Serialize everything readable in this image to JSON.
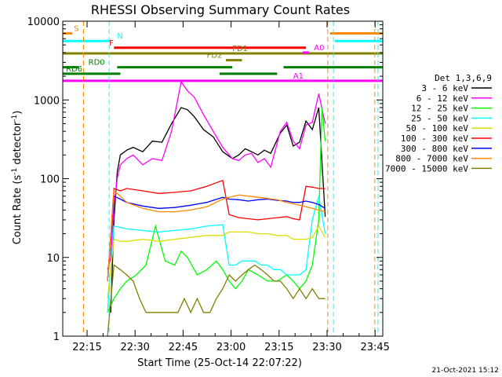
{
  "chart_data": {
    "type": "line",
    "title": "RHESSI Observing Summary Count Rates",
    "xlabel": "Start Time (25-Oct-14 22:07:22)",
    "ylabel": "Count Rate (s⁻¹ detector⁻¹)",
    "ylabel_main": "Count Rate (s",
    "ylabel_sup1": "-1",
    "ylabel_mid": " detector",
    "ylabel_sup2": "-1",
    "ylabel_end": ")",
    "x_unit": "minutes after 22:07:22",
    "xlim": [
      0,
      100
    ],
    "ylim": [
      1,
      10000
    ],
    "yscale": "log",
    "x_ticks": [
      {
        "label": "22:15",
        "value": 7.6
      },
      {
        "label": "22:30",
        "value": 22.6
      },
      {
        "label": "22:45",
        "value": 37.6
      },
      {
        "label": "23:00",
        "value": 52.6
      },
      {
        "label": "23:15",
        "value": 67.6
      },
      {
        "label": "23:30",
        "value": 82.6
      },
      {
        "label": "23:45",
        "value": 97.6
      }
    ],
    "y_ticks": [
      {
        "label": "1",
        "value": 1
      },
      {
        "label": "10",
        "value": 10
      },
      {
        "label": "100",
        "value": 100
      },
      {
        "label": "1000",
        "value": 1000
      },
      {
        "label": "10000",
        "value": 10000
      }
    ],
    "legend_title": "Det 1,3,6,9",
    "legend_position": "right",
    "series": [
      {
        "name": "3 - 6 keV",
        "color": "#000000",
        "x": [
          15,
          16,
          17,
          18,
          20,
          22,
          25,
          28,
          31,
          34,
          37,
          39,
          41,
          44,
          47,
          50,
          53,
          55,
          57,
          59,
          61,
          63,
          65,
          68,
          70,
          72,
          74,
          76,
          78,
          80,
          82
        ],
        "y": [
          2,
          30,
          120,
          200,
          230,
          250,
          220,
          300,
          290,
          500,
          800,
          750,
          620,
          420,
          340,
          220,
          180,
          200,
          240,
          220,
          200,
          230,
          210,
          380,
          480,
          260,
          290,
          540,
          420,
          800,
          33
        ]
      },
      {
        "name": "6 - 12 keV",
        "color": "#ff00ff",
        "x": [
          14,
          15,
          16,
          17,
          18,
          20,
          22,
          25,
          28,
          31,
          34,
          37,
          39,
          41,
          44,
          47,
          50,
          53,
          55,
          57,
          59,
          61,
          63,
          65,
          68,
          70,
          72,
          74,
          76,
          78,
          80,
          82
        ],
        "y": [
          7,
          10,
          45,
          100,
          150,
          180,
          200,
          150,
          180,
          170,
          400,
          1700,
          1300,
          1100,
          650,
          400,
          250,
          180,
          170,
          200,
          210,
          160,
          180,
          140,
          400,
          520,
          300,
          240,
          480,
          520,
          1200,
          500
        ]
      },
      {
        "name": "12 - 25 keV",
        "color": "#00ff00",
        "x": [
          14,
          16,
          18,
          20,
          23,
          26,
          29,
          32,
          35,
          37,
          39,
          42,
          45,
          48,
          50,
          52,
          54,
          56,
          58,
          61,
          64,
          67,
          70,
          72,
          74,
          76,
          78,
          80,
          81,
          82
        ],
        "y": [
          2,
          3,
          4,
          5,
          6,
          8,
          25,
          9,
          8,
          12,
          10,
          6,
          7,
          9,
          7,
          5,
          4,
          5,
          7,
          6,
          5,
          5,
          6,
          5,
          4,
          5,
          8,
          30,
          800,
          300
        ]
      },
      {
        "name": "25 - 50 keV",
        "color": "#00ffff",
        "x": [
          14,
          16,
          18,
          20,
          25,
          30,
          35,
          40,
          45,
          50,
          52,
          54,
          56,
          58,
          60,
          62,
          64,
          66,
          68,
          70,
          72,
          74,
          76,
          78,
          80,
          82
        ],
        "y": [
          2,
          25,
          24,
          23,
          22,
          21,
          22,
          23,
          25,
          26,
          8,
          8,
          9,
          9,
          9,
          8,
          8,
          7,
          7,
          6,
          6,
          6,
          7,
          30,
          60,
          20
        ]
      },
      {
        "name": "50 - 100 keV",
        "color": "#dddd00",
        "x": [
          14,
          16,
          18,
          20,
          25,
          30,
          35,
          40,
          45,
          50,
          52,
          55,
          58,
          61,
          64,
          67,
          70,
          72,
          74,
          76,
          78,
          80,
          82
        ],
        "y": [
          3,
          17,
          16,
          16,
          17,
          16,
          17,
          18,
          19,
          19,
          21,
          21,
          21,
          20,
          20,
          19,
          19,
          17,
          17,
          17,
          18,
          25,
          18
        ]
      },
      {
        "name": "100 - 300 keV",
        "color": "#ff0000",
        "x": [
          14,
          16,
          18,
          20,
          25,
          30,
          35,
          40,
          45,
          50,
          52,
          55,
          58,
          61,
          64,
          67,
          70,
          72,
          74,
          76,
          78,
          80,
          82
        ],
        "y": [
          5,
          75,
          70,
          75,
          70,
          65,
          67,
          70,
          80,
          95,
          35,
          32,
          31,
          30,
          31,
          32,
          33,
          31,
          30,
          80,
          78,
          75,
          75
        ]
      },
      {
        "name": "300 - 800 keV",
        "color": "#0000ff",
        "x": [
          14,
          16,
          18,
          20,
          25,
          30,
          35,
          40,
          45,
          50,
          52,
          55,
          58,
          61,
          64,
          67,
          70,
          72,
          74,
          76,
          78,
          80,
          82
        ],
        "y": [
          5,
          60,
          55,
          50,
          45,
          42,
          43,
          46,
          50,
          58,
          55,
          54,
          52,
          54,
          55,
          53,
          52,
          50,
          50,
          52,
          50,
          47,
          42
        ]
      },
      {
        "name": "800 - 7000 keV",
        "color": "#ff8800",
        "x": [
          14,
          16,
          18,
          20,
          25,
          30,
          35,
          40,
          45,
          50,
          52,
          55,
          58,
          61,
          64,
          67,
          70,
          72,
          74,
          76,
          78,
          80,
          82
        ],
        "y": [
          5,
          70,
          60,
          50,
          42,
          38,
          38,
          40,
          44,
          55,
          58,
          62,
          60,
          58,
          56,
          54,
          50,
          48,
          46,
          44,
          42,
          40,
          38
        ]
      },
      {
        "name": "7000 - 15000 keV",
        "color": "#808000",
        "x": [
          14,
          16,
          18,
          20,
          22,
          24,
          26,
          28,
          30,
          32,
          34,
          36,
          38,
          40,
          42,
          44,
          46,
          48,
          50,
          52,
          54,
          56,
          58,
          60,
          62,
          64,
          66,
          68,
          70,
          72,
          74,
          76,
          78,
          80,
          82
        ],
        "y": [
          1,
          8,
          7,
          6,
          5,
          3,
          2,
          2,
          2,
          2,
          2,
          2,
          3,
          2,
          3,
          2,
          2,
          3,
          4,
          6,
          5,
          6,
          7,
          8,
          7,
          6,
          5,
          5,
          4,
          3,
          4,
          3,
          4,
          3,
          3
        ]
      }
    ],
    "flag_bars": [
      {
        "label": "S",
        "color": "#ff8800",
        "segments": [
          [
            0,
            3
          ],
          [
            83.5,
            100
          ]
        ],
        "level": 7000,
        "label_x": 3.5
      },
      {
        "label": "N",
        "color": "#00ffff",
        "segments": [
          [
            0,
            15
          ],
          [
            85,
            100
          ]
        ],
        "level": 5600,
        "label_x": 17
      },
      {
        "label": "F",
        "color": "#ff0000",
        "segments": [
          [
            16,
            76
          ]
        ],
        "level": 4600,
        "label_x": 14.5
      },
      {
        "label": "FD1",
        "color": "#808000",
        "segments": [
          [
            0,
            100
          ]
        ],
        "level": 3900,
        "label_x": 53
      },
      {
        "label": "FD2",
        "color": "#808000",
        "segments": [
          [
            51,
            56
          ]
        ],
        "level": 3200,
        "label_x": 45
      },
      {
        "label": "RD0",
        "color": "#008000",
        "segments": [
          [
            0,
            5
          ],
          [
            17,
            53
          ],
          [
            69,
            100
          ]
        ],
        "level": 2600,
        "label_x": 8
      },
      {
        "label": "RD6",
        "color": "#008000",
        "segments": [
          [
            0,
            18
          ],
          [
            49,
            67
          ]
        ],
        "level": 2150,
        "label_x": 1
      },
      {
        "label": "A1",
        "color": "#ff00ff",
        "segments": [
          [
            0,
            100
          ]
        ],
        "level": 1750,
        "label_x": 72
      },
      {
        "label": "A0",
        "color": "#ff00ff",
        "segments": [
          [
            75,
            77
          ]
        ],
        "level": 4000,
        "label_x": 78.5
      }
    ],
    "vertical_markers": [
      {
        "color": "#ff8800",
        "x": 6.5
      },
      {
        "color": "#00ffff",
        "x": 14.5
      },
      {
        "color": "#ff8800",
        "x": 82.8
      },
      {
        "color": "#00ffff",
        "x": 84.6
      },
      {
        "color": "#ff8800",
        "x": 97.5
      },
      {
        "color": "#00ffff",
        "x": 98.5
      }
    ],
    "footer": "21-Oct-2021 15:12"
  }
}
